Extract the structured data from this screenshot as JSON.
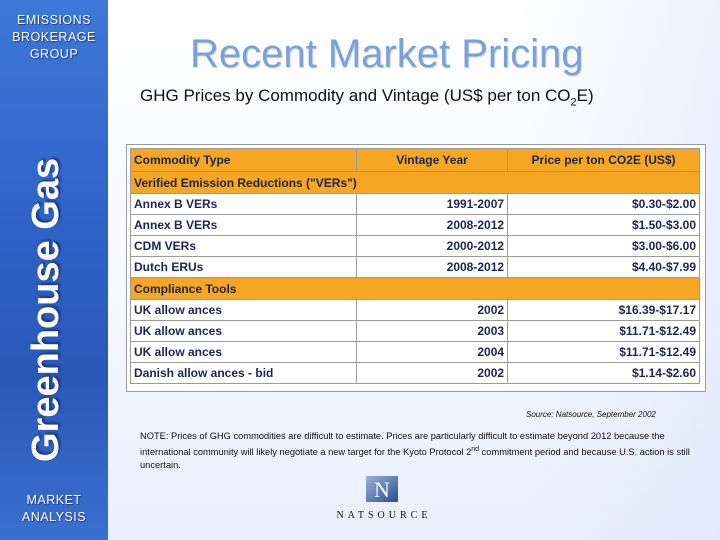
{
  "sidebar": {
    "brand_line1": "EMISSIONS",
    "brand_line2": "BROKERAGE",
    "brand_line3": "GROUP",
    "vertical_title": "Greenhouse Gas",
    "footer_line1": "MARKET",
    "footer_line2": "ANALYSIS"
  },
  "main": {
    "title": "Recent Market Pricing",
    "subtitle_pre": "GHG Prices by Commodity and Vintage (US$ per ton CO",
    "subtitle_sub": "2",
    "subtitle_post": "E)",
    "table": {
      "headers": [
        "Commodity Type",
        "Vintage Year",
        "Price per ton CO2E (US$)"
      ],
      "section1": "Verified Emission Reductions (\"VERs\")",
      "rows1": [
        {
          "commodity": "Annex B VERs",
          "vintage": "1991-2007",
          "price": "$0.30-$2.00"
        },
        {
          "commodity": "Annex B VERs",
          "vintage": "2008-2012",
          "price": "$1.50-$3.00"
        },
        {
          "commodity": "CDM VERs",
          "vintage": "2000-2012",
          "price": "$3.00-$6.00"
        },
        {
          "commodity": "Dutch ERUs",
          "vintage": "2008-2012",
          "price": "$4.40-$7.99"
        }
      ],
      "section2": "Compliance Tools",
      "rows2": [
        {
          "commodity": "UK allow ances",
          "vintage": "2002",
          "price": "$16.39-$17.17"
        },
        {
          "commodity": "UK allow ances",
          "vintage": "2003",
          "price": "$11.71-$12.49"
        },
        {
          "commodity": "UK allow ances",
          "vintage": "2004",
          "price": "$11.71-$12.49"
        },
        {
          "commodity": "Danish allow ances - bid",
          "vintage": "2002",
          "price": "$1.14-$2.60"
        }
      ]
    },
    "source": "Source: Natsource, September 2002",
    "note_pre": "NOTE: Prices of GHG commodities are difficult to estimate.  Prices are particularly difficult to estimate beyond 2012  because the international community will likely negotiate a new target for the Kyoto Protocol 2",
    "note_sup": "nd",
    "note_post": " commitment period and because U.S. action is still uncertain.",
    "logo_text": "NATSOURCE"
  },
  "colors": {
    "sidebar_blue": "#2f63c8",
    "table_header_orange": "#f5a623",
    "title_blue": "#7d9fda",
    "table_text": "#1c2456"
  }
}
